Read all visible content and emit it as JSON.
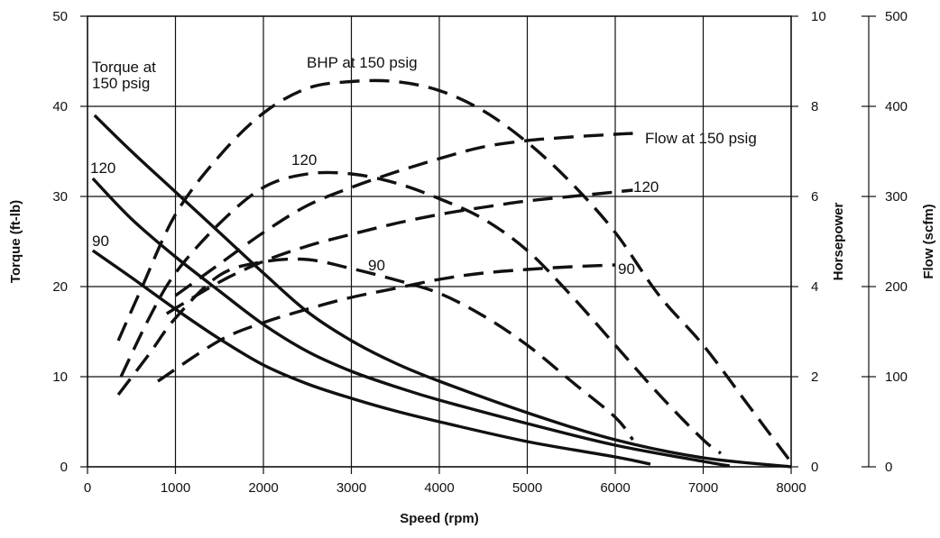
{
  "chart_data": {
    "type": "line",
    "x": {
      "label": "Speed (rpm)",
      "range": [
        0,
        8000
      ],
      "ticks": [
        "0",
        "1000",
        "2000",
        "3000",
        "4000",
        "5000",
        "6000",
        "7000",
        "8000"
      ]
    },
    "y_left": {
      "label": "Torque (ft-lb)",
      "range": [
        0,
        50
      ],
      "ticks": [
        "0",
        "10",
        "20",
        "30",
        "40",
        "50"
      ]
    },
    "y_right1": {
      "label": "Horsepower",
      "range": [
        0,
        10
      ],
      "ticks": [
        "0",
        "2",
        "4",
        "6",
        "8",
        "10"
      ]
    },
    "y_right2": {
      "label": "Flow (scfm)",
      "range": [
        0,
        500
      ],
      "ticks": [
        "0",
        "100",
        "200",
        "300",
        "400",
        "500"
      ]
    },
    "grid": true,
    "series": [
      {
        "name": "Torque at 150 psig",
        "axis": "torque",
        "style": "solid",
        "points": [
          [
            80,
            39
          ],
          [
            500,
            35
          ],
          [
            1000,
            30.5
          ],
          [
            1500,
            26
          ],
          [
            2000,
            21.5
          ],
          [
            2500,
            17.2
          ],
          [
            3000,
            14
          ],
          [
            3500,
            11.5
          ],
          [
            4000,
            9.5
          ],
          [
            5000,
            6
          ],
          [
            6000,
            3
          ],
          [
            7000,
            1
          ],
          [
            8000,
            0
          ]
        ]
      },
      {
        "name": "120",
        "axis": "torque",
        "style": "solid",
        "points": [
          [
            60,
            32
          ],
          [
            500,
            27.5
          ],
          [
            1000,
            23.3
          ],
          [
            1500,
            19.5
          ],
          [
            2000,
            15.8
          ],
          [
            2500,
            12.8
          ],
          [
            3000,
            10.6
          ],
          [
            3500,
            8.9
          ],
          [
            4000,
            7.4
          ],
          [
            5000,
            4.8
          ],
          [
            6000,
            2.4
          ],
          [
            7000,
            0.6
          ],
          [
            7300,
            0.1
          ]
        ]
      },
      {
        "name": "90",
        "axis": "torque",
        "style": "solid",
        "points": [
          [
            60,
            24
          ],
          [
            500,
            21
          ],
          [
            1000,
            17.5
          ],
          [
            1500,
            14.2
          ],
          [
            2000,
            11.3
          ],
          [
            2500,
            9.2
          ],
          [
            3000,
            7.6
          ],
          [
            3500,
            6.2
          ],
          [
            4000,
            5
          ],
          [
            5000,
            2.8
          ],
          [
            6000,
            1.1
          ],
          [
            6400,
            0.3
          ]
        ]
      },
      {
        "name": "BHP at 150 psig",
        "axis": "horsepower",
        "style": "dashed",
        "points": [
          [
            350,
            2.8
          ],
          [
            600,
            3.9
          ],
          [
            1000,
            5.6
          ],
          [
            1500,
            6.9
          ],
          [
            2000,
            7.85
          ],
          [
            2500,
            8.4
          ],
          [
            3000,
            8.55
          ],
          [
            3500,
            8.55
          ],
          [
            4000,
            8.35
          ],
          [
            4500,
            7.9
          ],
          [
            5000,
            7.2
          ],
          [
            5500,
            6.3
          ],
          [
            6000,
            5.2
          ],
          [
            6500,
            3.8
          ],
          [
            7000,
            2.7
          ],
          [
            7500,
            1.4
          ],
          [
            8000,
            0.1
          ]
        ]
      },
      {
        "name": "120",
        "axis": "horsepower",
        "style": "dashed",
        "points": [
          [
            380,
            2
          ],
          [
            700,
            3.3
          ],
          [
            1000,
            4.3
          ],
          [
            1500,
            5.4
          ],
          [
            2000,
            6.2
          ],
          [
            2500,
            6.5
          ],
          [
            3000,
            6.5
          ],
          [
            3500,
            6.3
          ],
          [
            4000,
            5.95
          ],
          [
            4500,
            5.5
          ],
          [
            5000,
            4.8
          ],
          [
            5500,
            3.8
          ],
          [
            6000,
            2.7
          ],
          [
            6500,
            1.6
          ],
          [
            7000,
            0.6
          ],
          [
            7200,
            0.3
          ]
        ]
      },
      {
        "name": "90",
        "axis": "horsepower",
        "style": "dashed",
        "points": [
          [
            350,
            1.6
          ],
          [
            700,
            2.5
          ],
          [
            1000,
            3.3
          ],
          [
            1500,
            4.25
          ],
          [
            2000,
            4.55
          ],
          [
            2500,
            4.6
          ],
          [
            3000,
            4.4
          ],
          [
            3500,
            4.15
          ],
          [
            4000,
            3.85
          ],
          [
            4500,
            3.35
          ],
          [
            5000,
            2.7
          ],
          [
            5500,
            1.9
          ],
          [
            6000,
            1.1
          ],
          [
            6200,
            0.6
          ]
        ]
      },
      {
        "name": "Flow at 150 psig",
        "axis": "flow",
        "style": "dashed",
        "points": [
          [
            1000,
            190
          ],
          [
            1500,
            225
          ],
          [
            2000,
            260
          ],
          [
            2500,
            290
          ],
          [
            3000,
            310
          ],
          [
            3500,
            327
          ],
          [
            4000,
            342
          ],
          [
            4500,
            355
          ],
          [
            5000,
            362
          ],
          [
            5500,
            366
          ],
          [
            6000,
            369
          ],
          [
            6200,
            370
          ]
        ]
      },
      {
        "name": "120",
        "axis": "flow",
        "style": "dashed",
        "points": [
          [
            900,
            170
          ],
          [
            1500,
            205
          ],
          [
            2000,
            228
          ],
          [
            2500,
            245
          ],
          [
            3000,
            258
          ],
          [
            3500,
            270
          ],
          [
            4000,
            280
          ],
          [
            4500,
            288
          ],
          [
            5000,
            295
          ],
          [
            5500,
            300
          ],
          [
            6000,
            305
          ],
          [
            6200,
            307
          ]
        ]
      },
      {
        "name": "90",
        "axis": "flow",
        "style": "dashed",
        "points": [
          [
            800,
            95
          ],
          [
            1500,
            140
          ],
          [
            2000,
            160
          ],
          [
            2500,
            175
          ],
          [
            3000,
            188
          ],
          [
            3500,
            198
          ],
          [
            4000,
            208
          ],
          [
            4500,
            215
          ],
          [
            5000,
            219
          ],
          [
            5500,
            222
          ],
          [
            6000,
            224
          ]
        ]
      }
    ],
    "annotations": [
      {
        "lines": [
          "Torque at",
          "150 psig"
        ]
      },
      {
        "lines": [
          "BHP at 150 psig"
        ]
      },
      {
        "lines": [
          "Flow at 150 psig"
        ]
      },
      {
        "lines": [
          "120"
        ]
      },
      {
        "lines": [
          "120"
        ]
      },
      {
        "lines": [
          "120"
        ]
      },
      {
        "lines": [
          "90"
        ]
      },
      {
        "lines": [
          "90"
        ]
      },
      {
        "lines": [
          "90"
        ]
      }
    ]
  }
}
